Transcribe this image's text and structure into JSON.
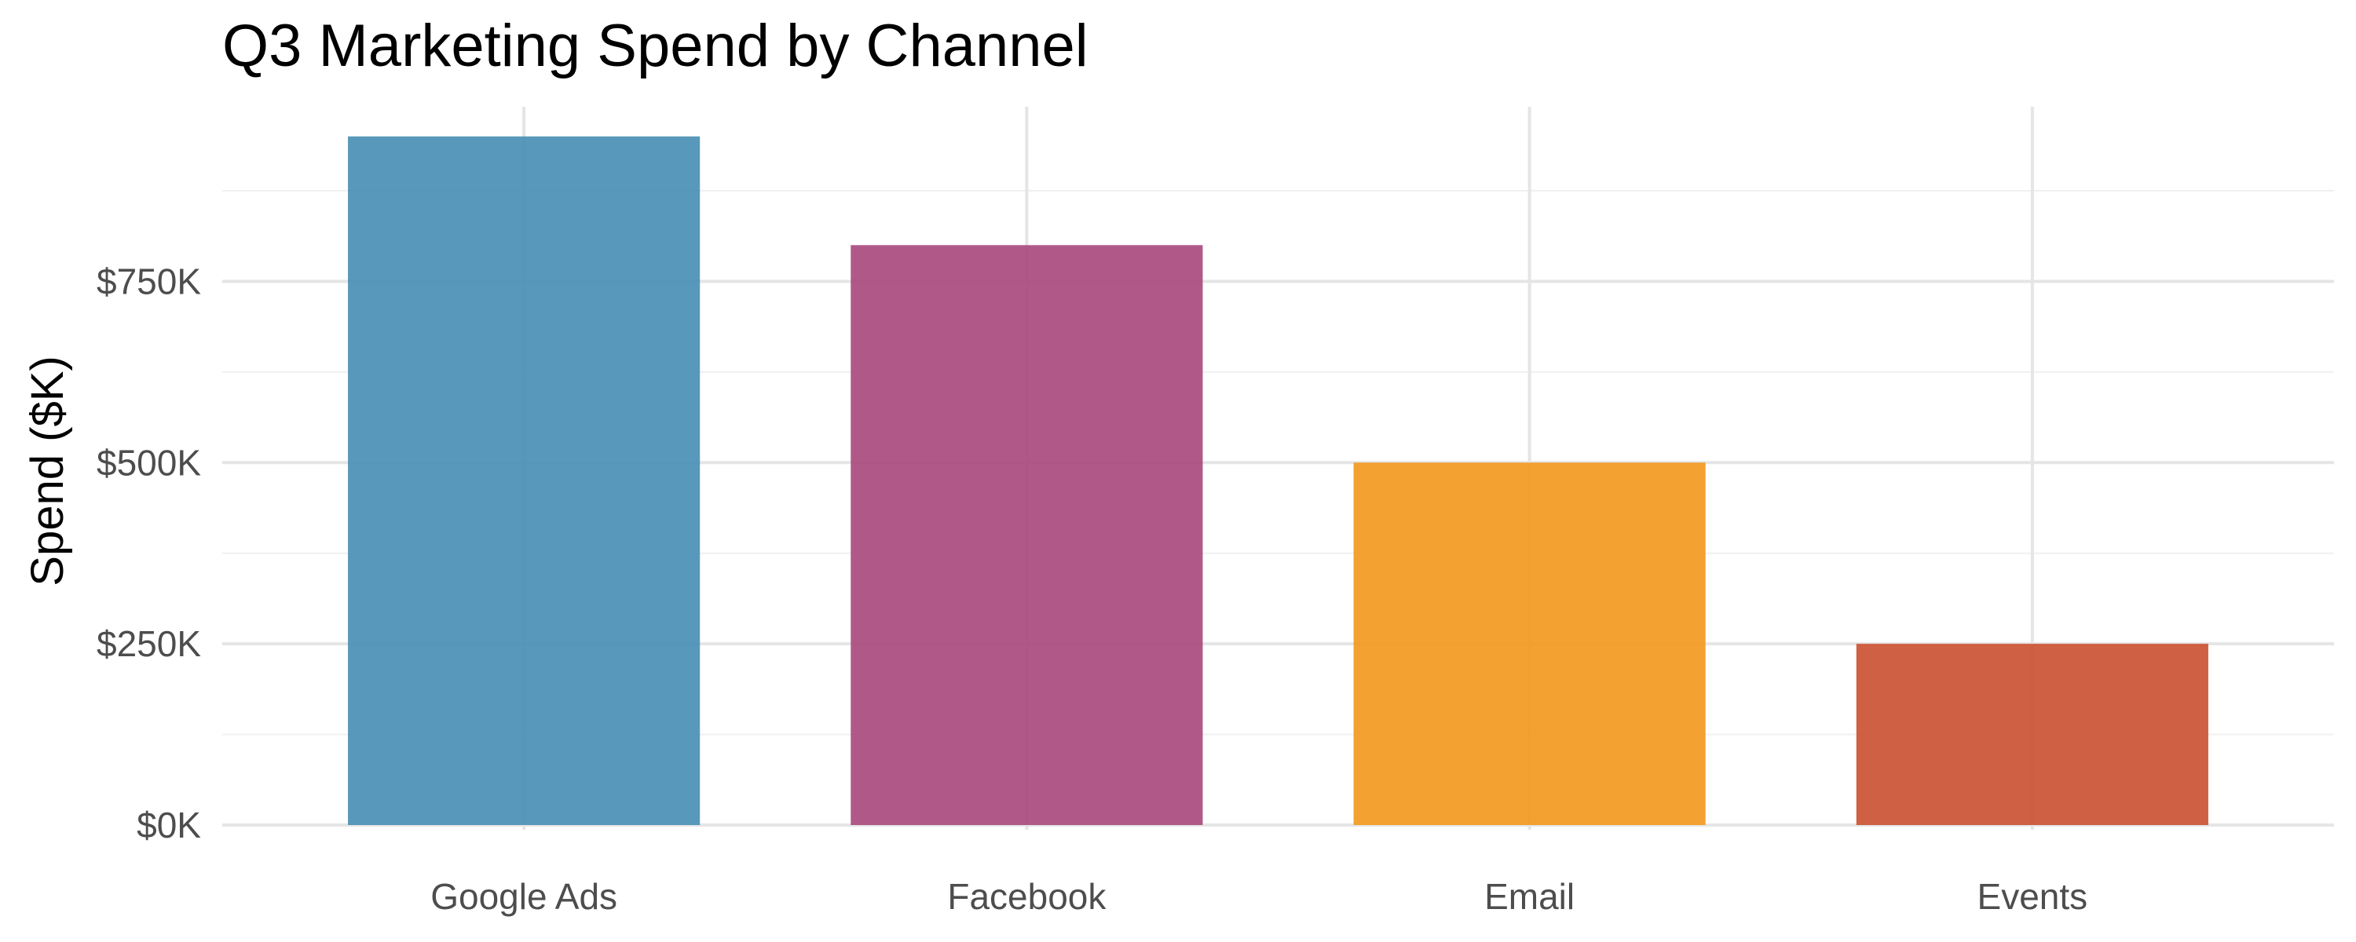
{
  "chart_data": {
    "type": "bar",
    "title": "Q3 Marketing Spend by Channel",
    "xlabel": "",
    "ylabel": "Spend ($K)",
    "categories": [
      "Google Ads",
      "Facebook",
      "Email",
      "Events"
    ],
    "values": [
      950,
      800,
      500,
      250
    ],
    "units": "$K",
    "colors": [
      "#4a90b5",
      "#a94b7e",
      "#f29a1f",
      "#cc5233"
    ],
    "ylim": [
      0,
      1000
    ],
    "y_ticks": [
      0,
      250,
      500,
      750
    ],
    "y_tick_labels": [
      "$0K",
      "$250K",
      "$500K",
      "$750K"
    ],
    "grid": true,
    "legend": "none"
  }
}
